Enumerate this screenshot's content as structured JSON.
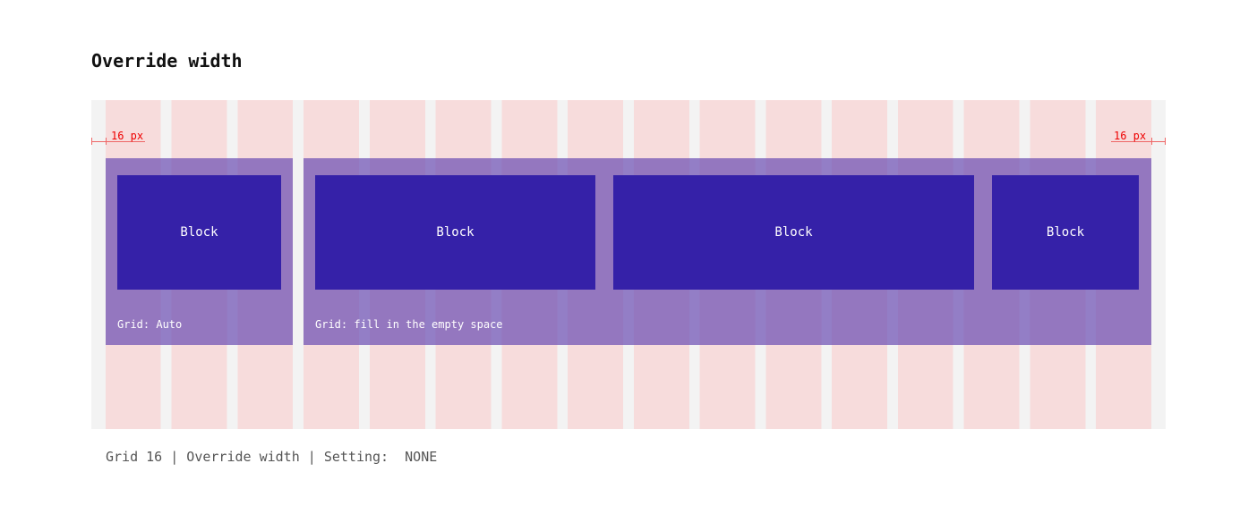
{
  "header": {
    "title": "Override width"
  },
  "margins": {
    "left": "16 px",
    "right": "16 px"
  },
  "groups": [
    {
      "caption": "Grid: Auto",
      "blocks": [
        "Block"
      ]
    },
    {
      "caption": "Grid: fill in the empty space",
      "blocks": [
        "Block",
        "Block",
        "Block"
      ]
    }
  ],
  "footer": {
    "caption": "Grid 16 | Override width | Setting:  NONE"
  }
}
